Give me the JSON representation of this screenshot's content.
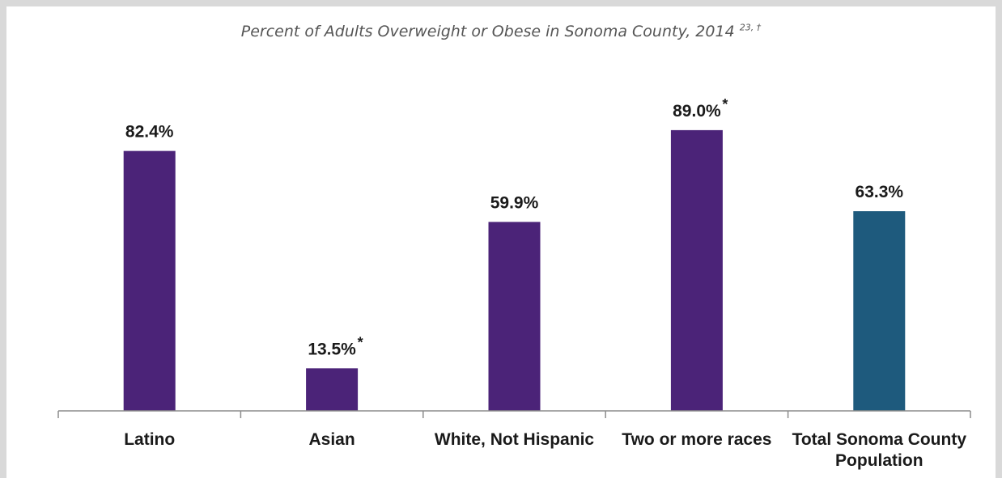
{
  "chart_data": {
    "type": "bar",
    "title": "Percent of Adults Overweight or Obese in Sonoma County, 2014",
    "title_superscript": "23, †",
    "categories": [
      "Latino",
      "Asian",
      "White, Not Hispanic",
      "Two or more races",
      "Total Sonoma County Population"
    ],
    "values": [
      82.4,
      13.5,
      59.9,
      89.0,
      63.3
    ],
    "value_labels": [
      "82.4%",
      "13.5%",
      "59.9%",
      "89.0%",
      "63.3%"
    ],
    "markers": [
      "",
      "*",
      "",
      "*",
      ""
    ],
    "colors": [
      "#4b2378",
      "#4b2378",
      "#4b2378",
      "#4b2378",
      "#1e5a7d"
    ],
    "ylim": [
      0,
      100
    ],
    "grid": false,
    "legend": "none"
  }
}
